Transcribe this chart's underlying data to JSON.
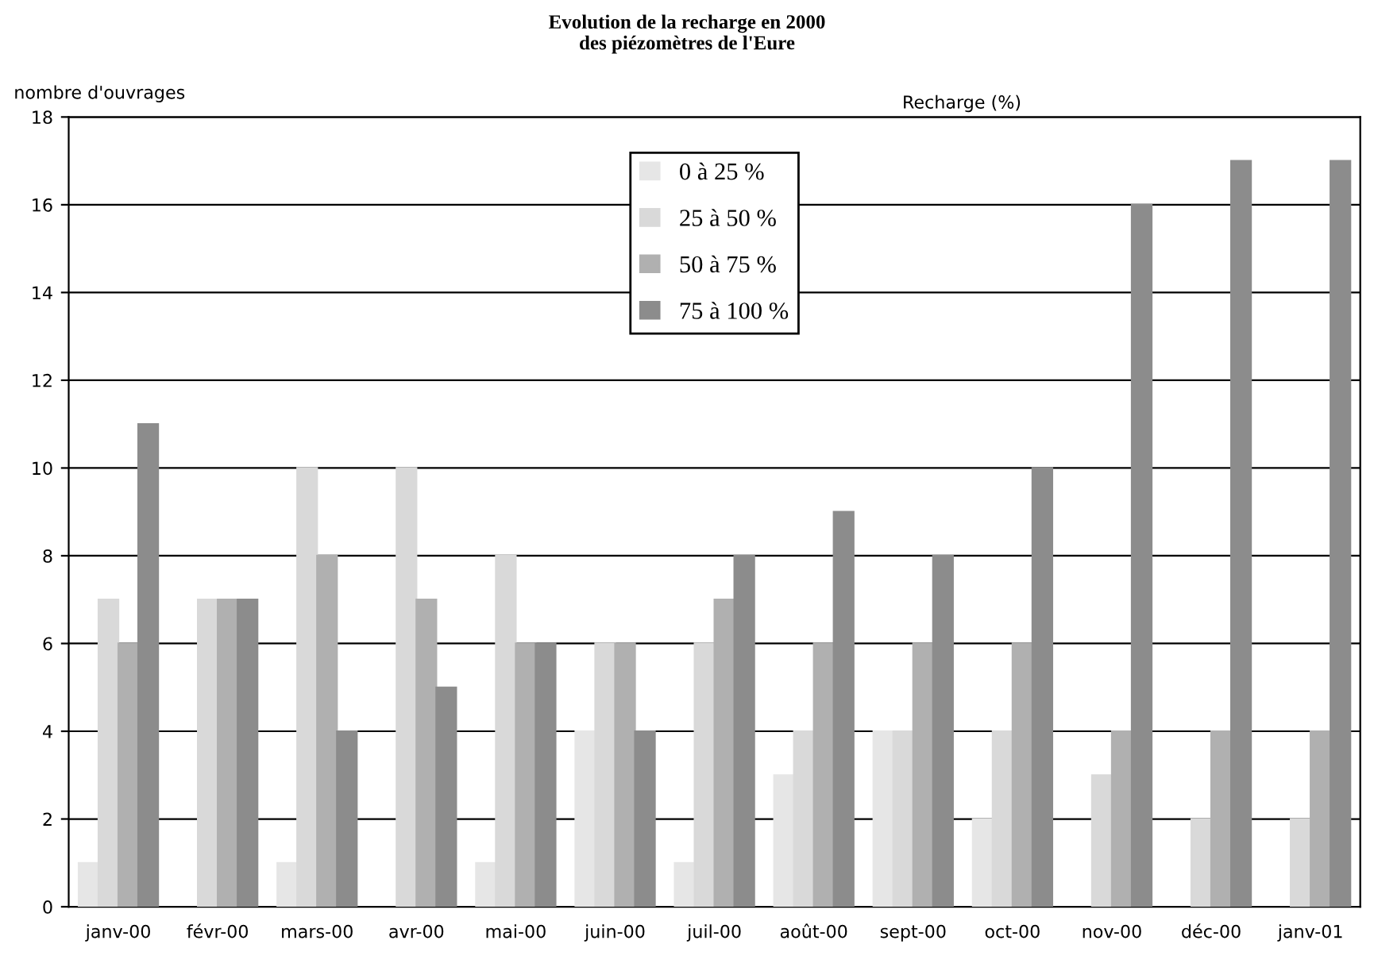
{
  "chart_data": {
    "type": "bar",
    "title": "Evolution de la recharge en 2000\ndes piézomètres de l'Eure",
    "ylabel": "nombre d'ouvrages",
    "legend_title": "Recharge (%)",
    "categories": [
      "janv-00",
      "févr-00",
      "mars-00",
      "avr-00",
      "mai-00",
      "juin-00",
      "juil-00",
      "août-00",
      "sept-00",
      "oct-00",
      "nov-00",
      "déc-00",
      "janv-01"
    ],
    "series": [
      {
        "name": "0 à 25 %",
        "color": "#e6e6e6",
        "values": [
          1,
          null,
          1,
          null,
          1,
          4,
          1,
          3,
          4,
          2,
          null,
          null,
          null
        ]
      },
      {
        "name": "25 à 50 %",
        "color": "#d9d9d9",
        "values": [
          7,
          7,
          10,
          10,
          8,
          6,
          6,
          4,
          4,
          4,
          3,
          2,
          2
        ]
      },
      {
        "name": "50 à 75 %",
        "color": "#b0b0b0",
        "values": [
          6,
          7,
          8,
          7,
          6,
          6,
          7,
          6,
          6,
          6,
          4,
          4,
          4
        ]
      },
      {
        "name": "75 à 100 %",
        "color": "#8c8c8c",
        "values": [
          11,
          7,
          4,
          5,
          6,
          4,
          8,
          9,
          8,
          10,
          16,
          17,
          17
        ]
      }
    ],
    "ylim": [
      0,
      18
    ],
    "yticks": [
      0,
      2,
      4,
      6,
      8,
      10,
      12,
      14,
      16,
      18
    ],
    "grid": "y",
    "legend": "top"
  }
}
